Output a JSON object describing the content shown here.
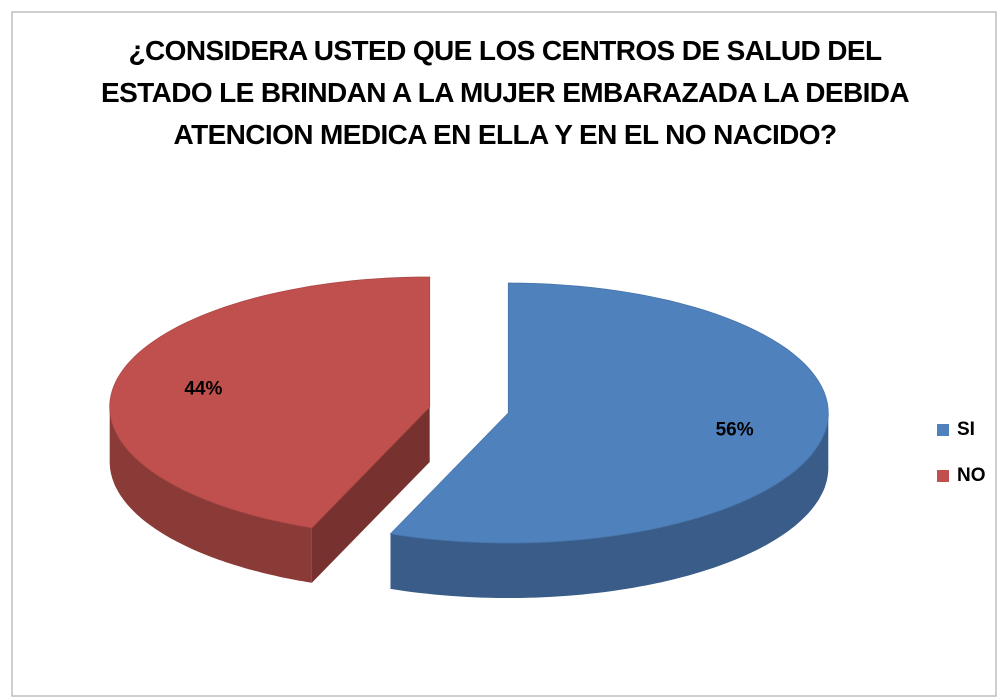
{
  "chart_data": {
    "type": "pie",
    "title": "¿CONSIDERA USTED QUE LOS CENTROS DE SALUD DEL ESTADO LE BRINDAN A LA MUJER EMBARAZADA LA DEBIDA ATENCION MEDICA EN ELLA Y EN EL NO NACIDO?",
    "categories": [
      "SI",
      "NO"
    ],
    "values": [
      56,
      44
    ],
    "value_labels": [
      "56%",
      "44%"
    ],
    "colors": [
      "#4f81bd",
      "#c0504d"
    ],
    "legend": "right"
  }
}
